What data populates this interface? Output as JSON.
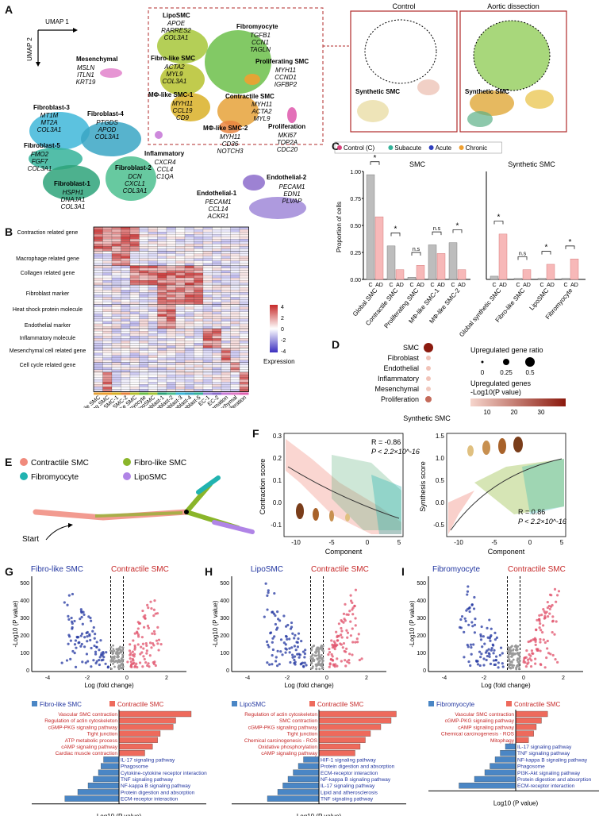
{
  "panels": {
    "A": "A",
    "B": "B",
    "C": "C",
    "D": "D",
    "E": "E",
    "F": "F",
    "G": "G",
    "H": "H",
    "I": "I"
  },
  "panelA": {
    "axis_x": "UMAP 1",
    "axis_y": "UMAP 2",
    "clusters": [
      {
        "name": "Mesenchymal",
        "genes": [
          "MSLN",
          "ITLN1",
          "KRT19"
        ],
        "color": "#e07ac8"
      },
      {
        "name": "Fibroblast-3",
        "genes": [
          "MT1M",
          "MT2A",
          "COL3A1"
        ],
        "color": "#3fb7d9"
      },
      {
        "name": "Fibroblast-4",
        "genes": [
          "PTGDS",
          "APOD",
          "COL3A1"
        ],
        "color": "#3aa6c4"
      },
      {
        "name": "Fibroblast-5",
        "genes": [
          "FMO2",
          "FGF7",
          "COL3A1"
        ],
        "color": "#35b39a"
      },
      {
        "name": "Fibroblast-1",
        "genes": [
          "HSPH1",
          "DNAJA1",
          "COL3A1"
        ],
        "color": "#2ea37a"
      },
      {
        "name": "Fibroblast-2",
        "genes": [
          "DCN",
          "CXCL1",
          "COL3A1"
        ],
        "color": "#4cbf8f"
      },
      {
        "name": "LipoSMC",
        "genes": [
          "APOE",
          "RARRES2",
          "COL3A1"
        ],
        "color": "#a7c73a"
      },
      {
        "name": "Fibromyocyte",
        "genes": [
          "TGFB1",
          "CCN1",
          "TAGLN"
        ],
        "color": "#6cbf4a"
      },
      {
        "name": "Fibro-like SMC",
        "genes": [
          "ACTA2",
          "MYL9",
          "COL3A1"
        ],
        "color": "#b6c22e"
      },
      {
        "name": "Proliferating SMC",
        "genes": [
          "MYH11",
          "CCND1",
          "IGFBP2"
        ],
        "color": "#f0a030"
      },
      {
        "name": "MΦ-like SMC-1",
        "genes": [
          "MYH11",
          "CCL19",
          "CD9"
        ],
        "color": "#d9b027"
      },
      {
        "name": "Contractile SMC",
        "genes": [
          "MYH11",
          "ACTA2",
          "MYL9"
        ],
        "color": "#e6a23a"
      },
      {
        "name": "MΦ-like SMC-2",
        "genes": [
          "MYH11",
          "CD36",
          "NOTCH3"
        ],
        "color": "#e9853f"
      },
      {
        "name": "Proliferation",
        "genes": [
          "MKI67",
          "TOP2A",
          "CDC20"
        ],
        "color": "#e061b0"
      },
      {
        "name": "Inflammatory",
        "genes": [
          "CXCR4",
          "CCL4",
          "C1QA"
        ],
        "color": "#c87cd8"
      },
      {
        "name": "Endothelial-2",
        "genes": [
          "PECAM1",
          "EDN1",
          "PLVAP"
        ],
        "color": "#8c6ccb"
      },
      {
        "name": "Endothelial-1",
        "genes": [
          "PECAM1",
          "CCL14",
          "ACKR1"
        ],
        "color": "#a088d8"
      }
    ],
    "control_label": "Control",
    "ad_label": "Aortic dissection",
    "synthetic_label": "Synthetic SMC"
  },
  "panelB": {
    "row_groups": [
      "Contraction related gene",
      "Macrophage related gene",
      "Collagen related gene",
      "Fibroblast marker",
      "Heat shock protein molecule",
      "Endothelial marker",
      "Inflammatory molecule",
      "Mesenchymal cell related gene",
      "Cell cycle related gene"
    ],
    "columns": [
      "Contractile SMC",
      "Proliferating SMC",
      "MΦ-like SMC-1",
      "MΦ-like SMC-2",
      "Fibro-like SMC",
      "Fibromyocyte",
      "LipoSMC",
      "Fibroblast-1",
      "Fibroblast-2",
      "Fibroblast-3",
      "Fibroblast-4",
      "Fibroblast-5",
      "EC-1",
      "EC-2",
      "Inflammation",
      "Mesenchymal",
      "Proliferation"
    ],
    "legend_title": "Expression",
    "legend_ticks": [
      "4",
      "2",
      "0",
      "-2",
      "-4"
    ]
  },
  "panelC": {
    "legend": [
      {
        "label": "Control (C)",
        "color": "#d9437b"
      },
      {
        "label": "Subacute",
        "color": "#33b39a"
      },
      {
        "label": "Acute",
        "color": "#2f3fbf"
      },
      {
        "label": "Chronic",
        "color": "#f0a030"
      }
    ],
    "title_left": "SMC",
    "title_right": "Synthetic SMC",
    "ylabel": "Proportion of cells",
    "yticks": [
      "0.00",
      "0.25",
      "0.50",
      "0.75",
      "1.00"
    ],
    "left_groups": [
      "Global SMC",
      "Contractile SMC",
      "Proliferating SMC",
      "MΦ-like SMC-1",
      "MΦ-like SMC-2"
    ],
    "right_groups": [
      "Global synthetic SMC",
      "Fibro-like SMC",
      "LipoSMC",
      "Fibromyocyte"
    ],
    "tick_c": "C",
    "tick_ad": "AD",
    "sig": "*",
    "ns": "n.s"
  },
  "chart_data": [
    {
      "type": "bar",
      "title": "SMC",
      "ylabel": "Proportion of cells",
      "ylim": [
        0,
        1
      ],
      "categories": [
        "Global SMC",
        "Contractile SMC",
        "Proliferating SMC",
        "MΦ-like SMC-1",
        "MΦ-like SMC-2"
      ],
      "series": [
        {
          "name": "Control (C)",
          "values": [
            0.97,
            0.31,
            0.02,
            0.32,
            0.34
          ]
        },
        {
          "name": "AD",
          "values": [
            0.58,
            0.09,
            0.13,
            0.24,
            0.09
          ]
        }
      ]
    },
    {
      "type": "bar",
      "title": "Synthetic SMC",
      "ylim": [
        0,
        1
      ],
      "categories": [
        "Global synthetic SMC",
        "Fibro-like SMC",
        "LipoSMC",
        "Fibromyocyte"
      ],
      "series": [
        {
          "name": "Control (C)",
          "values": [
            0.03,
            0.01,
            0.01,
            0.01
          ]
        },
        {
          "name": "AD",
          "values": [
            0.42,
            0.09,
            0.14,
            0.19
          ]
        }
      ]
    },
    {
      "type": "bar",
      "title": "Fibro-like SMC vs Contractile SMC",
      "xlabel": "Log10 (P value)",
      "categories": [
        "Vascular SMC contraction",
        "Regulation of actin cytoskeleton",
        "cGMP-PKG signaling pathway",
        "Tight junction",
        "ATP metabolic process",
        "cAMP signaling pathway",
        "Cardiac muscle contraction",
        "IL-17 signaling pathway",
        "Phagosome",
        "Cytokine-cytokine receptor interaction",
        "TNF signaling pathway",
        "NF-kappa B signaling pathway",
        "Protein digestion and absorption",
        "ECM-receptor interaction"
      ],
      "values": [
        -14,
        -11,
        -10.5,
        -8,
        -7.5,
        -6.5,
        -5,
        3,
        3.5,
        4,
        5,
        6,
        8,
        10.5
      ]
    },
    {
      "type": "bar",
      "title": "LipoSMC vs Contractile SMC",
      "xlabel": "Log10 (P value)",
      "categories": [
        "Regulation of actin cytoskeleton",
        "SMC contraction",
        "cGMP-PKG signaling pathway",
        "Tight junction",
        "Chemical carcinogenesis - ROS",
        "Oxidative phosphorylation",
        "cAMP signaling pathway",
        "HIF-1 signaling pathway",
        "Protein digestion and absorption",
        "ECM-receptor interaction",
        "NF-kappa B signaling pathway",
        "IL-17 signaling pathway",
        "Lipid and atherosclerosis",
        "TNF signaling pathway"
      ],
      "values": [
        -15,
        -14,
        -12,
        -10,
        -9,
        -8,
        -7,
        3,
        4,
        5,
        6,
        7,
        8,
        10
      ]
    },
    {
      "type": "bar",
      "title": "Fibromyocyte vs Contractile SMC",
      "xlabel": "Log10 (P value)",
      "categories": [
        "Vascular SMC contraction",
        "cGMP-PKG signaling pathway",
        "cAMP signaling pathway",
        "Chemical carcinogenesis - ROS",
        "Mitophagy",
        "IL-17 signaling pathway",
        "TNF signaling pathway",
        "NF-kappa B signaling pathway",
        "Phagosome",
        "PI3K-Akt signaling pathway",
        "Protein digestion and absorption",
        "ECM-receptor interaction"
      ],
      "values": [
        -6.2,
        -5,
        -4,
        -3.5,
        -2.5,
        2,
        3,
        4,
        5,
        6,
        8,
        11
      ]
    }
  ],
  "panelD": {
    "rows": [
      "SMC",
      "Fibroblast",
      "Endothelial",
      "Inflammatory",
      "Mesenchymal",
      "Proliferation"
    ],
    "xlabel": "Synthetic SMC",
    "legend_title1": "Upregulated gene ratio",
    "size_ticks": [
      "0",
      "0.25",
      "0.5"
    ],
    "legend_title2": "Upregulated genes",
    "legend_title3": "-Log10(P value)",
    "color_ticks": [
      "10",
      "20",
      "30"
    ]
  },
  "panelE": {
    "legend": [
      {
        "label": "Contractile SMC",
        "color": "#f08a7c"
      },
      {
        "label": "Fibro-like SMC",
        "color": "#8ab52a"
      },
      {
        "label": "Fibromyocyte",
        "color": "#21b3b0"
      },
      {
        "label": "LipoSMC",
        "color": "#b084e6"
      }
    ],
    "start": "Start"
  },
  "panelF": {
    "left": {
      "ylabel": "Contraction score",
      "r": "R = -0.86",
      "p": "P < 2.2×10^-16",
      "yticks": [
        "0.3",
        "0.2",
        "0.1",
        "0.0",
        "-0.1"
      ]
    },
    "right": {
      "ylabel": "Synthesis score",
      "r": "R = 0.86",
      "p": "P < 2.2×10^-16",
      "yticks": [
        "1.5",
        "1.0",
        "0.5",
        "0.0",
        "-0.5"
      ]
    },
    "xlabel": "Component",
    "xticks": [
      "-10",
      "-5",
      "0",
      "5"
    ]
  },
  "volcano": {
    "ylabel": "-Log10 (P value)",
    "xlabel": "Log (fold change)",
    "G": {
      "left": "Fibro-like SMC",
      "right": "Contractile SMC",
      "xticks": [
        "-4",
        "-2",
        "0",
        "2"
      ]
    },
    "H": {
      "left": "LipoSMC",
      "right": "Contractile SMC",
      "xticks": [
        "-4",
        "-2",
        "0",
        "2"
      ]
    },
    "I": {
      "left": "Fibromyocyte",
      "right": "Contractile SMC",
      "xticks": [
        "-4",
        "-2",
        "0",
        "2"
      ]
    },
    "yticks": [
      "500",
      "400",
      "300",
      "200",
      "100",
      "0"
    ]
  }
}
